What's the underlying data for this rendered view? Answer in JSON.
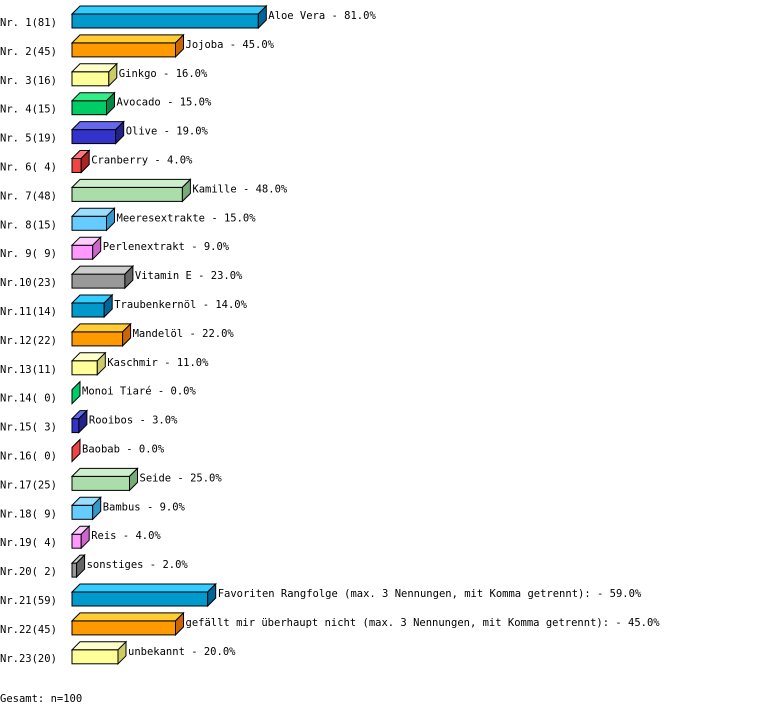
{
  "chart_data": {
    "type": "bar",
    "orientation": "horizontal",
    "style": "3d",
    "unit": "%",
    "categories": [
      "Nr. 1",
      "Nr. 2",
      "Nr. 3",
      "Nr. 4",
      "Nr. 5",
      "Nr. 6",
      "Nr. 7",
      "Nr. 8",
      "Nr. 9",
      "Nr.10",
      "Nr.11",
      "Nr.12",
      "Nr.13",
      "Nr.14",
      "Nr.15",
      "Nr.16",
      "Nr.17",
      "Nr.18",
      "Nr.19",
      "Nr.20",
      "Nr.21",
      "Nr.22",
      "Nr.23"
    ],
    "counts": [
      81,
      45,
      16,
      15,
      19,
      4,
      48,
      15,
      9,
      23,
      14,
      22,
      11,
      0,
      3,
      0,
      25,
      9,
      4,
      2,
      59,
      45,
      20
    ],
    "labels": [
      "Aloe Vera",
      "Jojoba",
      "Ginkgo",
      "Avocado",
      "Olive",
      "Cranberry",
      "Kamille",
      "Meeresextrakte",
      "Perlenextrakt",
      "Vitamin E",
      "Traubenkernöl",
      "Mandelöl",
      "Kaschmir",
      "Monoi Tiaré",
      "Rooibos",
      "Baobab",
      "Seide",
      "Bambus",
      "Reis",
      "sonstiges",
      "Favoriten Rangfolge (max. 3 Nennungen, mit Komma getrennt):",
      "gefällt mir überhaupt nicht (max. 3 Nennungen, mit Komma getrennt):",
      "unbekannt"
    ],
    "values": [
      81.0,
      45.0,
      16.0,
      15.0,
      19.0,
      4.0,
      48.0,
      15.0,
      9.0,
      23.0,
      14.0,
      22.0,
      11.0,
      0.0,
      3.0,
      0.0,
      25.0,
      9.0,
      4.0,
      2.0,
      59.0,
      45.0,
      20.0
    ],
    "colors": [
      {
        "front": "#0099cc",
        "top": "#33ccff",
        "side": "#006699"
      },
      {
        "front": "#ff9900",
        "top": "#ffcc33",
        "side": "#cc6600"
      },
      {
        "front": "#ffff99",
        "top": "#ffffcc",
        "side": "#cccc66"
      },
      {
        "front": "#00cc66",
        "top": "#33ee88",
        "side": "#008844"
      },
      {
        "front": "#3333cc",
        "top": "#6666ee",
        "side": "#222288"
      },
      {
        "front": "#ee4444",
        "top": "#ff7777",
        "side": "#aa2222"
      },
      {
        "front": "#aaddaa",
        "top": "#cceecc",
        "side": "#77aa77"
      },
      {
        "front": "#66ccff",
        "top": "#99ddff",
        "side": "#3399cc"
      },
      {
        "front": "#ff99ff",
        "top": "#ffccff",
        "side": "#cc66cc"
      },
      {
        "front": "#999999",
        "top": "#cccccc",
        "side": "#666666"
      }
    ],
    "footer": "Gesamt: n=100"
  }
}
